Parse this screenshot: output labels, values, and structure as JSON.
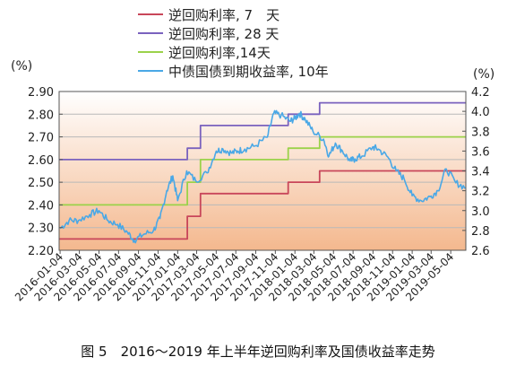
{
  "caption": "图 5　2016～2019 年上半年逆回购利率及国债收益率走势",
  "chart_data": {
    "type": "line",
    "left_unit": "(%)",
    "right_unit": "(%)",
    "left_axis": {
      "min": 2.2,
      "max": 2.9,
      "ticks": [
        "2.20",
        "2.30",
        "2.40",
        "2.50",
        "2.60",
        "2.70",
        "2.80",
        "2.90"
      ]
    },
    "right_axis": {
      "min": 2.6,
      "max": 4.2,
      "ticks": [
        "2.6",
        "2.8",
        "3.0",
        "3.2",
        "3.4",
        "3.6",
        "3.8",
        "4.0",
        "4.2"
      ]
    },
    "x_range": [
      "2016-01-01",
      "2019-06-20"
    ],
    "x_ticks": [
      "2016-01-04",
      "2016-03-04",
      "2016-05-04",
      "2016-07-04",
      "2016-09-04",
      "2016-11-04",
      "2017-01-04",
      "2017-03-04",
      "2017-05-04",
      "2017-07-04",
      "2017-09-04",
      "2017-11-04",
      "2018-01-04",
      "2018-03-04",
      "2018-05-04",
      "2018-07-04",
      "2018-09-04",
      "2018-11-04",
      "2019-01-04",
      "2019-03-04",
      "2019-05-04"
    ],
    "background": {
      "top_color": "#ffffff",
      "bottom_color": "#f4b88e"
    },
    "series": [
      {
        "name": "逆回购利率, 7　天",
        "axis": "left",
        "color": "#c8465a",
        "style": "step",
        "x": [
          "2016-01-01",
          "2017-01-26",
          "2017-02-03",
          "2017-03-16",
          "2017-12-14",
          "2018-03-22",
          "2019-06-20"
        ],
        "y": [
          2.25,
          2.25,
          2.35,
          2.45,
          2.5,
          2.55,
          2.55
        ]
      },
      {
        "name": "逆回购利率, 28 天",
        "axis": "left",
        "color": "#7a62be",
        "style": "step",
        "x": [
          "2016-01-01",
          "2016-09-02",
          "2017-01-26",
          "2017-02-03",
          "2017-03-16",
          "2017-12-14",
          "2018-03-22",
          "2019-06-20"
        ],
        "y": [
          2.6,
          2.6,
          2.6,
          2.65,
          2.75,
          2.8,
          2.85,
          2.85
        ]
      },
      {
        "name": "逆回购利率,14天",
        "axis": "left",
        "color": "#9bd24a",
        "style": "step",
        "x": [
          "2016-01-01",
          "2016-09-14",
          "2017-02-03",
          "2017-03-16",
          "2017-12-14",
          "2018-03-22",
          "2019-06-20"
        ],
        "y": [
          2.4,
          2.4,
          2.5,
          2.6,
          2.65,
          2.7,
          2.7
        ]
      },
      {
        "name": "中债国债到期收益率, 10年",
        "axis": "right",
        "color": "#4aa8e6",
        "style": "line",
        "x": [
          "2016-01-04",
          "2016-02-01",
          "2016-03-01",
          "2016-04-05",
          "2016-05-04",
          "2016-06-01",
          "2016-07-01",
          "2016-08-01",
          "2016-08-22",
          "2016-09-20",
          "2016-10-21",
          "2016-11-10",
          "2016-12-01",
          "2016-12-20",
          "2017-01-04",
          "2017-02-01",
          "2017-03-01",
          "2017-04-05",
          "2017-05-04",
          "2017-05-25",
          "2017-06-20",
          "2017-07-10",
          "2017-08-01",
          "2017-09-01",
          "2017-10-10",
          "2017-10-30",
          "2017-11-22",
          "2017-12-20",
          "2018-01-04",
          "2018-01-18",
          "2018-02-05",
          "2018-03-01",
          "2018-04-03",
          "2018-04-20",
          "2018-05-10",
          "2018-06-01",
          "2018-06-25",
          "2018-07-10",
          "2018-08-01",
          "2018-09-03",
          "2018-09-20",
          "2018-10-20",
          "2018-11-15",
          "2018-12-10",
          "2019-01-04",
          "2019-02-01",
          "2019-03-01",
          "2019-03-25",
          "2019-04-20",
          "2019-05-20",
          "2019-06-20"
        ],
        "y": [
          2.82,
          2.9,
          2.9,
          2.96,
          3.0,
          2.9,
          2.86,
          2.78,
          2.7,
          2.76,
          2.8,
          2.92,
          3.2,
          3.35,
          3.1,
          3.4,
          3.3,
          3.38,
          3.6,
          3.62,
          3.58,
          3.6,
          3.62,
          3.65,
          3.74,
          3.98,
          3.96,
          3.9,
          3.93,
          3.98,
          3.92,
          3.8,
          3.72,
          3.55,
          3.68,
          3.6,
          3.5,
          3.52,
          3.55,
          3.64,
          3.62,
          3.54,
          3.4,
          3.32,
          3.15,
          3.1,
          3.14,
          3.2,
          3.42,
          3.28,
          3.23
        ]
      }
    ]
  }
}
